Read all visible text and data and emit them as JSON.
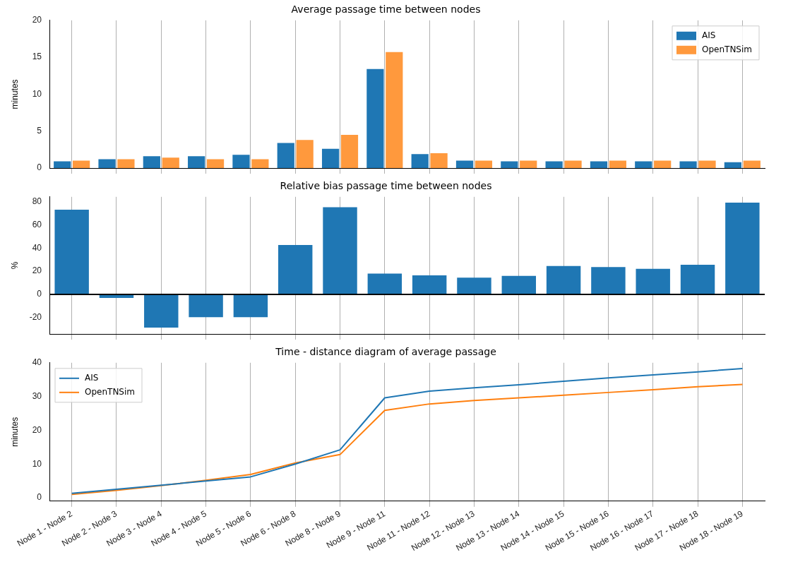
{
  "chart_data": [
    {
      "type": "bar",
      "title": "Average passage time between nodes",
      "ylabel": "minutes",
      "categories": [
        null,
        null,
        null,
        null,
        null,
        null,
        null,
        null,
        null,
        null,
        null,
        null,
        null,
        null,
        null,
        null
      ],
      "series": [
        {
          "name": "AIS",
          "color": "#1f77b4",
          "values": [
            0.9,
            1.2,
            1.6,
            1.6,
            1.8,
            3.4,
            2.6,
            13.4,
            1.9,
            1.0,
            0.9,
            0.9,
            0.9,
            0.9,
            0.9,
            0.8
          ]
        },
        {
          "name": "OpenTNSim",
          "color": "#ff993d",
          "values": [
            1.0,
            1.2,
            1.4,
            1.2,
            1.2,
            3.8,
            4.5,
            15.7,
            2.0,
            1.0,
            1.0,
            1.0,
            1.0,
            1.0,
            1.0,
            1.0
          ]
        }
      ],
      "ylim": [
        0,
        20
      ],
      "yticks": [
        0,
        5,
        10,
        15,
        20
      ],
      "grid": "x",
      "legend": "top right",
      "tick_labels": "y"
    },
    {
      "type": "bar",
      "title": "Relative bias passage time between nodes",
      "ylabel": "%",
      "categories": [
        null,
        null,
        null,
        null,
        null,
        null,
        null,
        null,
        null,
        null,
        null,
        null,
        null,
        null,
        null,
        null
      ],
      "series": [
        {
          "color": "#1f77b4",
          "values": [
            73,
            -3,
            -28.5,
            -19.5,
            -19.5,
            42.5,
            75,
            18,
            16.5,
            14.5,
            16,
            24.5,
            23.5,
            22,
            25.5,
            79
          ]
        }
      ],
      "ylim": [
        -34,
        84
      ],
      "yticks": [
        -20,
        0,
        20,
        40,
        60,
        80
      ],
      "grid": "x",
      "tick_labels": "y",
      "ref_lines": [
        {
          "axis": "y",
          "value": 0,
          "color": "#000000"
        }
      ]
    },
    {
      "type": "line",
      "title": "Time - distance diagram of average passage",
      "ylabel": "minutes",
      "categories": [
        "Node 1 - Node 2",
        "Node 2 - Node 3",
        "Node 3 - Node 4",
        "Node 4 - Node 5",
        "Node 5 - Node 6",
        "Node 6 - Node 8",
        "Node 8 - Node 9",
        "Node 9 - Node 11",
        "Node 11 - Node 12",
        "Node 12 - Node 13",
        "Node 13 - Node 14",
        "Node 14 - Node 15",
        "Node 15 - Node 16",
        "Node 16 - Node 17",
        "Node 17 - Node 18",
        "Node 18 - Node 19"
      ],
      "series": [
        {
          "name": "AIS",
          "color": "#1f77b4",
          "values": [
            1.3,
            2.5,
            3.7,
            5.0,
            6.2,
            10.0,
            14.2,
            29.6,
            31.6,
            32.6,
            33.5,
            34.5,
            35.5,
            36.4,
            37.3,
            38.3
          ]
        },
        {
          "name": "OpenTNSim",
          "color": "#ff7f0e",
          "values": [
            1.0,
            2.2,
            3.6,
            5.2,
            6.9,
            10.3,
            12.8,
            25.9,
            27.8,
            28.8,
            29.6,
            30.4,
            31.2,
            32.0,
            32.9,
            33.6
          ]
        }
      ],
      "ylim": [
        -1,
        40
      ],
      "yticks": [
        0,
        10,
        20,
        30,
        40
      ],
      "grid": "x",
      "legend": "top left",
      "marker": "none",
      "line_style": "solid"
    }
  ]
}
